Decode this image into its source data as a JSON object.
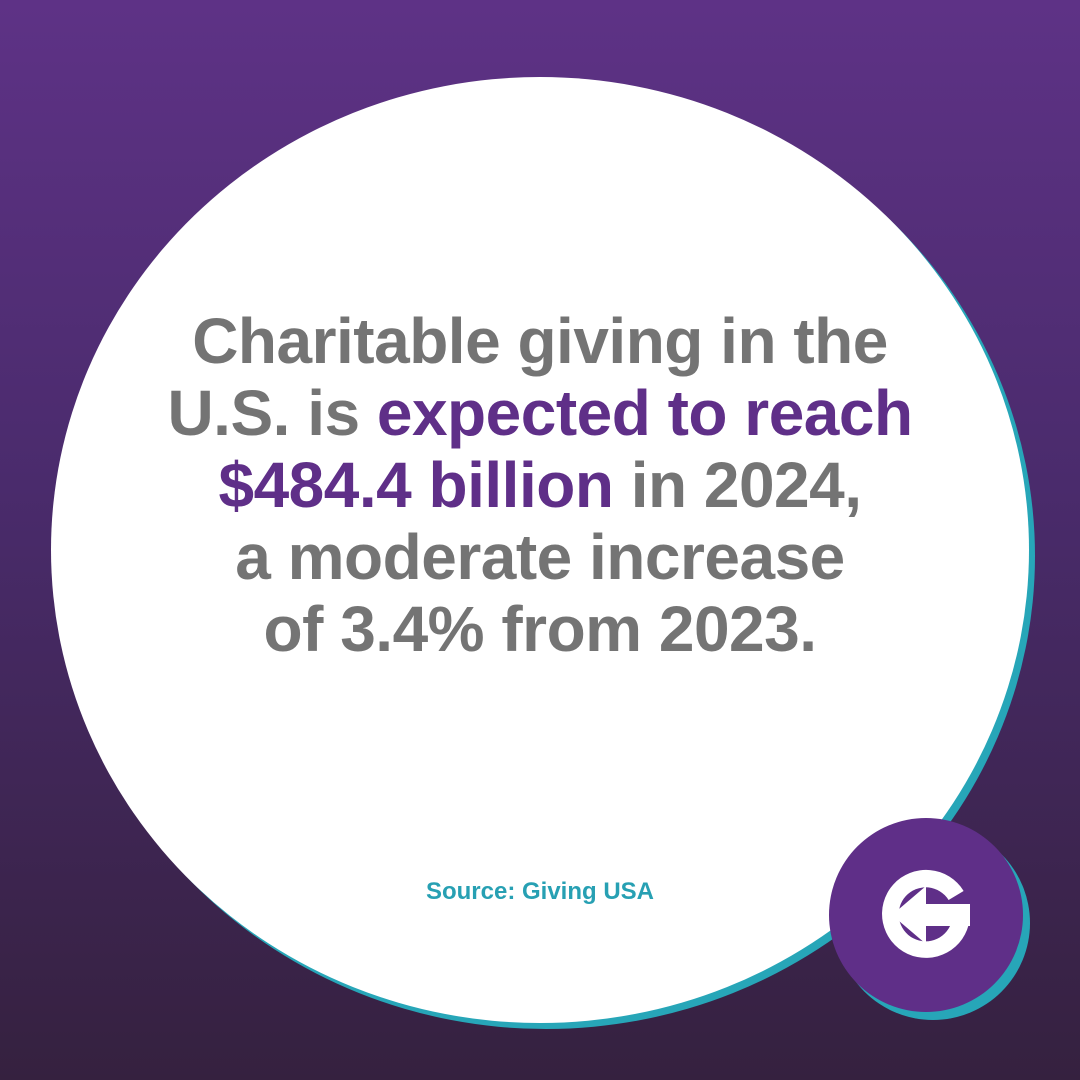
{
  "headline": {
    "line1": "Charitable giving in the",
    "line2_plain": "U.S. is ",
    "line2_highlight": "expected to reach",
    "line3_highlight": "$484.4 billion",
    "line3_plain": " in 2024,",
    "line4": "a moderate increase",
    "line5": "of 3.4% from 2023."
  },
  "source": "Source: Giving USA",
  "colors": {
    "background_top": "#5e3286",
    "background_bottom": "#35213f",
    "circle": "#ffffff",
    "ring_accent": "#27a6b8",
    "text_gray": "#747474",
    "highlight_purple": "#5f2f88",
    "source_teal": "#27a0b3"
  },
  "logo": {
    "icon": "g-arrow-logo-icon"
  }
}
